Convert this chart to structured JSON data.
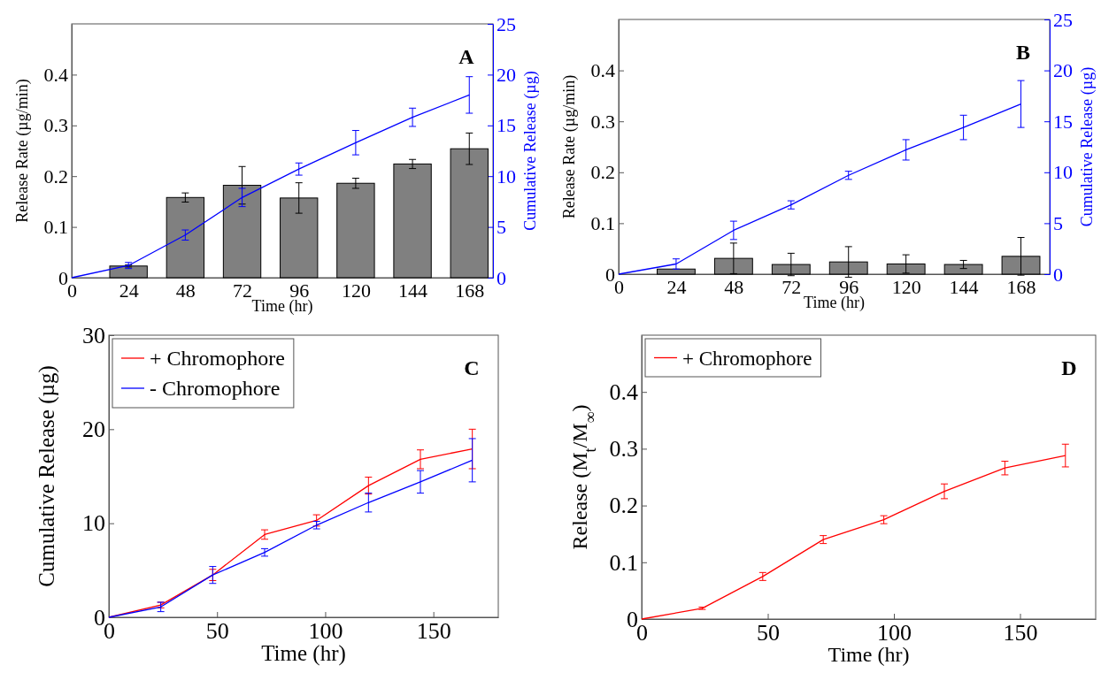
{
  "chart_data": [
    {
      "type": "bar",
      "xlabel": "Time (hr)",
      "ylabel": "Release Rate (µg/min)",
      "y2label": "Cumulative Release (µg)",
      "annotations": [
        "A"
      ],
      "x": [
        24,
        48,
        72,
        96,
        120,
        144,
        168
      ],
      "xlim": [
        0,
        178
      ],
      "xticks": [
        0,
        24,
        48,
        72,
        96,
        120,
        144,
        168
      ],
      "ylim": [
        0,
        0.5
      ],
      "yticks": [
        0,
        0.1,
        0.2,
        0.3,
        0.4
      ],
      "y2lim": [
        0,
        25
      ],
      "y2ticks": [
        0,
        5,
        10,
        15,
        20,
        25
      ],
      "grid": false,
      "legend": false,
      "series": [
        {
          "color": "#808080",
          "values": [
            0.023,
            0.158,
            0.182,
            0.157,
            0.186,
            0.224,
            0.254
          ],
          "errors": [
            0.002,
            0.009,
            0.037,
            0.03,
            0.01,
            0.009,
            0.031
          ]
        },
        {
          "type": "line",
          "axis": "y2",
          "color": "#0000ff",
          "x": [
            0,
            24,
            48,
            72,
            96,
            120,
            144,
            168
          ],
          "values": [
            0,
            1.2,
            4.2,
            7.9,
            10.7,
            13.3,
            15.8,
            18.0
          ],
          "errors": [
            null,
            0.3,
            0.5,
            0.9,
            0.6,
            1.2,
            0.9,
            1.8
          ]
        }
      ]
    },
    {
      "type": "bar",
      "xlabel": "Time (hr)",
      "ylabel": "Release Rate (µg/min)",
      "y2label": "Cumulative Release (µg)",
      "annotations": [
        "B"
      ],
      "x": [
        24,
        48,
        72,
        96,
        120,
        144,
        168
      ],
      "xlim": [
        0,
        180
      ],
      "xticks": [
        0,
        24,
        48,
        72,
        96,
        120,
        144,
        168
      ],
      "ylim": [
        0,
        0.5
      ],
      "yticks": [
        0,
        0.1,
        0.2,
        0.3,
        0.4
      ],
      "y2lim": [
        0,
        25
      ],
      "y2ticks": [
        0,
        5,
        10,
        15,
        20,
        25
      ],
      "grid": false,
      "legend": false,
      "series": [
        {
          "color": "#808080",
          "values": [
            0.01,
            0.031,
            0.019,
            0.024,
            0.02,
            0.019,
            0.035
          ],
          "errors": [
            null,
            0.03,
            0.022,
            0.03,
            0.018,
            0.008,
            0.037
          ]
        },
        {
          "type": "line",
          "axis": "y2",
          "color": "#0000ff",
          "x": [
            0,
            24,
            48,
            72,
            96,
            120,
            144,
            168
          ],
          "values": [
            0,
            1.0,
            4.3,
            6.8,
            9.7,
            12.2,
            14.4,
            16.7
          ],
          "errors": [
            null,
            0.5,
            0.9,
            0.4,
            0.4,
            1.0,
            1.2,
            2.3
          ]
        }
      ]
    },
    {
      "type": "line",
      "xlabel": "Time (hr)",
      "ylabel": "Cumulative Release (µg)",
      "annotations": [
        "C"
      ],
      "x": [
        0,
        24,
        48,
        72,
        96,
        120,
        144,
        168
      ],
      "xlim": [
        0,
        180
      ],
      "xticks": [
        0,
        50,
        100,
        150
      ],
      "ylim": [
        0,
        30
      ],
      "yticks": [
        0,
        10,
        20,
        30
      ],
      "grid": false,
      "legend": "top left",
      "marker": "none",
      "series": [
        {
          "name": "+ Chromophore",
          "color": "#ff0000",
          "values": [
            0,
            1.3,
            4.5,
            8.8,
            10.3,
            14.0,
            16.8,
            17.9
          ],
          "errors": [
            null,
            0.3,
            0.6,
            0.5,
            0.6,
            0.9,
            1.0,
            2.1
          ]
        },
        {
          "name": "- Chromophore",
          "color": "#0000ff",
          "values": [
            0,
            1.1,
            4.5,
            6.9,
            9.8,
            12.2,
            14.4,
            16.7
          ],
          "errors": [
            null,
            0.5,
            0.9,
            0.4,
            0.4,
            1.0,
            1.2,
            2.3
          ]
        }
      ]
    },
    {
      "type": "line",
      "xlabel": "Time (hr)",
      "ylabel": "Release (M$_{t}$/M$_{∞}$)",
      "annotations": [
        "D"
      ],
      "x": [
        0,
        24,
        48,
        72,
        96,
        120,
        144,
        168
      ],
      "xlim": [
        0,
        180
      ],
      "xticks": [
        0,
        50,
        100,
        150
      ],
      "ylim": [
        0,
        0.5
      ],
      "yticks": [
        0,
        0.1,
        0.2,
        0.3,
        0.4
      ],
      "grid": false,
      "legend": "top left",
      "marker": "none",
      "series": [
        {
          "name": "+ Chromophore",
          "color": "#ff0000",
          "values": [
            0,
            0.019,
            0.075,
            0.14,
            0.175,
            0.225,
            0.266,
            0.288
          ],
          "errors": [
            null,
            0.002,
            0.007,
            0.007,
            0.007,
            0.013,
            0.012,
            0.02
          ]
        }
      ]
    }
  ]
}
